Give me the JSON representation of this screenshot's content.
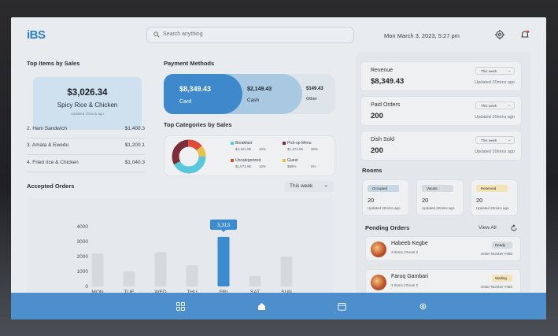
{
  "app": {
    "logo": "iBS",
    "datetime": "Mon March 3, 2023,  5:27 pm"
  },
  "search": {
    "placeholder": "Search anything"
  },
  "top_items": {
    "title": "Top Items by Sales",
    "featured": {
      "amount": "$3,026.34",
      "name": "Spicy Rice & Chicken",
      "updated": "Updated 20mins ago"
    },
    "rows": [
      {
        "name": "2. Ham Sandwich",
        "value": "$1,400.3"
      },
      {
        "name": "3. Amala & Ewedu",
        "value": "$1,200.1"
      },
      {
        "name": "4. Fried rice & Chicken",
        "value": "$1,040.3"
      }
    ]
  },
  "payment": {
    "title": "Payment Methods",
    "card": {
      "amount": "$8,349.43",
      "label": "Card"
    },
    "cash": {
      "amount": "$2,149.43",
      "label": "Cash"
    },
    "other": {
      "amount": "$149.43",
      "label": "Other"
    }
  },
  "categories": {
    "title": "Top Categories by Sales",
    "items": [
      {
        "name": "Breakfast",
        "amount": "$4,121.96",
        "pct": "10%",
        "color": "#5ac8dc"
      },
      {
        "name": "Pick-up Menu",
        "amount": "$1,472.96",
        "pct": "30%",
        "color": "#7c2c3a"
      },
      {
        "name": "Uncategorized",
        "amount": "$1,072.96",
        "pct": "10%",
        "color": "#e04a3a"
      },
      {
        "name": "Guest",
        "amount": "$99%",
        "pct": "5%",
        "color": "#e8c14a"
      }
    ]
  },
  "accepted_orders": {
    "title": "Accepted Orders",
    "filter": "This week",
    "tooltip": "3,313"
  },
  "chart_data": {
    "type": "bar",
    "title": "Accepted Orders",
    "categories": [
      "MON",
      "TUE",
      "WED",
      "THU",
      "FRI",
      "SAT",
      "SUN"
    ],
    "values": [
      2200,
      1000,
      2300,
      1400,
      3313,
      700,
      2000
    ],
    "yticks": [
      0,
      1000,
      2000,
      3000,
      4000
    ],
    "ylim": [
      0,
      4000
    ],
    "highlight_index": 4,
    "colors": {
      "bar": "#d5d9de",
      "highlight": "#3a8bd0"
    }
  },
  "stats": [
    {
      "title": "Revenue",
      "value": "$8,349.43",
      "filter": "This week",
      "updated": "Updated 20mins ago"
    },
    {
      "title": "Paid Orders",
      "value": "200",
      "filter": "This week",
      "updated": "Updated 20mins ago"
    },
    {
      "title": "Dish Sold",
      "value": "200",
      "filter": "This week",
      "updated": "Updated 20mins ago"
    }
  ],
  "rooms": {
    "title": "Rooms",
    "items": [
      {
        "status": "Occupied",
        "count": "20",
        "updated": "Updated 20mins ago",
        "color": "#c9d7e3"
      },
      {
        "status": "Vacant",
        "count": "20",
        "updated": "Updated 20mins ago",
        "color": "#d7dadf"
      },
      {
        "status": "Reserved",
        "count": "20",
        "updated": "Updated 20mins ago",
        "color": "#f5e3b8"
      }
    ]
  },
  "pending": {
    "title": "Pending Orders",
    "view_all": "View All",
    "items": [
      {
        "name": "Habeeb Kegbe",
        "sub": "3 Items | Room 2",
        "status": "Ready",
        "order": "Order Number #450",
        "color": "#d6dbe0"
      },
      {
        "name": "Faruq Gambari",
        "sub": "3 Items | Room 2",
        "status": "Waiting",
        "order": "Order Number #450",
        "color": "#f5e3b8"
      }
    ]
  }
}
